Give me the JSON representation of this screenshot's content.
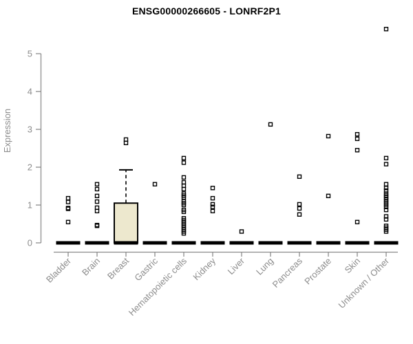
{
  "title": "ENSG00000266605 - LONRF2P1",
  "colors": {
    "background": "#FFFFFF",
    "title_text": "#000000",
    "axis": "#8C8C8C",
    "tick_label": "#8C8C8C",
    "box_fill": "#EDE8CE",
    "box_border": "#000000",
    "point": "#000000",
    "median": "#000000"
  },
  "chart_data": {
    "type": "boxplot",
    "title": "ENSG00000266605 - LONRF2P1",
    "xlabel": "",
    "ylabel": "Expression",
    "ylim": [
      0,
      5.65
    ],
    "yticks": [
      0,
      1,
      2,
      3,
      4,
      5
    ],
    "grid": false,
    "legend": null,
    "categories": [
      "Bladder",
      "Brain",
      "Breast",
      "Gastric",
      "Hematopoietic cells",
      "Kidney",
      "Liver",
      "Lung",
      "Pancreas",
      "Prostate",
      "Skin",
      "Unknown / Other"
    ],
    "series": [
      {
        "category": "Bladder",
        "q1": 0,
        "median": 0,
        "q3": 0,
        "whisker_low": 0,
        "whisker_high": 0,
        "points": [
          1.18,
          1.08,
          0.92,
          0.9,
          0.55
        ]
      },
      {
        "category": "Brain",
        "q1": 0,
        "median": 0,
        "q3": 0,
        "whisker_low": 0,
        "whisker_high": 0,
        "points": [
          1.55,
          1.42,
          1.24,
          1.09,
          0.93,
          0.84,
          0.47,
          0.45
        ]
      },
      {
        "category": "Breast",
        "q1": 0,
        "median": 0,
        "q3": 1.05,
        "whisker_low": 0,
        "whisker_high": 1.93,
        "points": [
          2.73,
          2.64
        ]
      },
      {
        "category": "Gastric",
        "q1": 0,
        "median": 0,
        "q3": 0,
        "whisker_low": 0,
        "whisker_high": 0,
        "points": [
          1.55
        ]
      },
      {
        "category": "Hematopoietic cells",
        "q1": 0,
        "median": 0,
        "q3": 0,
        "whisker_low": 0,
        "whisker_high": 0,
        "points": [
          2.24,
          2.12,
          1.73,
          1.6,
          1.51,
          1.42,
          1.3,
          1.25,
          1.2,
          1.1,
          1.05,
          1.0,
          0.87,
          0.82,
          0.65,
          0.6,
          0.55,
          0.5,
          0.45,
          0.4,
          0.35,
          0.3,
          0.25
        ]
      },
      {
        "category": "Kidney",
        "q1": 0,
        "median": 0,
        "q3": 0,
        "whisker_low": 0,
        "whisker_high": 0,
        "points": [
          1.45,
          1.18,
          1.02,
          0.95,
          0.84
        ]
      },
      {
        "category": "Liver",
        "q1": 0,
        "median": 0,
        "q3": 0,
        "whisker_low": 0,
        "whisker_high": 0,
        "points": [
          0.3
        ]
      },
      {
        "category": "Lung",
        "q1": 0,
        "median": 0,
        "q3": 0,
        "whisker_low": 0,
        "whisker_high": 0,
        "points": [
          3.13
        ]
      },
      {
        "category": "Pancreas",
        "q1": 0,
        "median": 0,
        "q3": 0,
        "whisker_low": 0,
        "whisker_high": 0,
        "points": [
          1.75,
          1.02,
          0.91,
          0.75
        ]
      },
      {
        "category": "Prostate",
        "q1": 0,
        "median": 0,
        "q3": 0,
        "whisker_low": 0,
        "whisker_high": 0,
        "points": [
          2.82,
          1.24
        ]
      },
      {
        "category": "Skin",
        "q1": 0,
        "median": 0,
        "q3": 0,
        "whisker_low": 0,
        "whisker_high": 0,
        "points": [
          2.87,
          2.75,
          2.45,
          0.55
        ]
      },
      {
        "category": "Unknown / Other",
        "q1": 0,
        "median": 0,
        "q3": 0,
        "whisker_low": 0,
        "whisker_high": 0,
        "points": [
          5.65,
          2.24,
          2.08,
          1.55,
          1.45,
          1.38,
          1.3,
          1.25,
          1.2,
          1.15,
          1.1,
          1.05,
          1.0,
          0.95,
          0.87,
          0.7,
          0.62,
          0.45,
          0.4,
          0.35,
          0.3
        ]
      }
    ]
  }
}
